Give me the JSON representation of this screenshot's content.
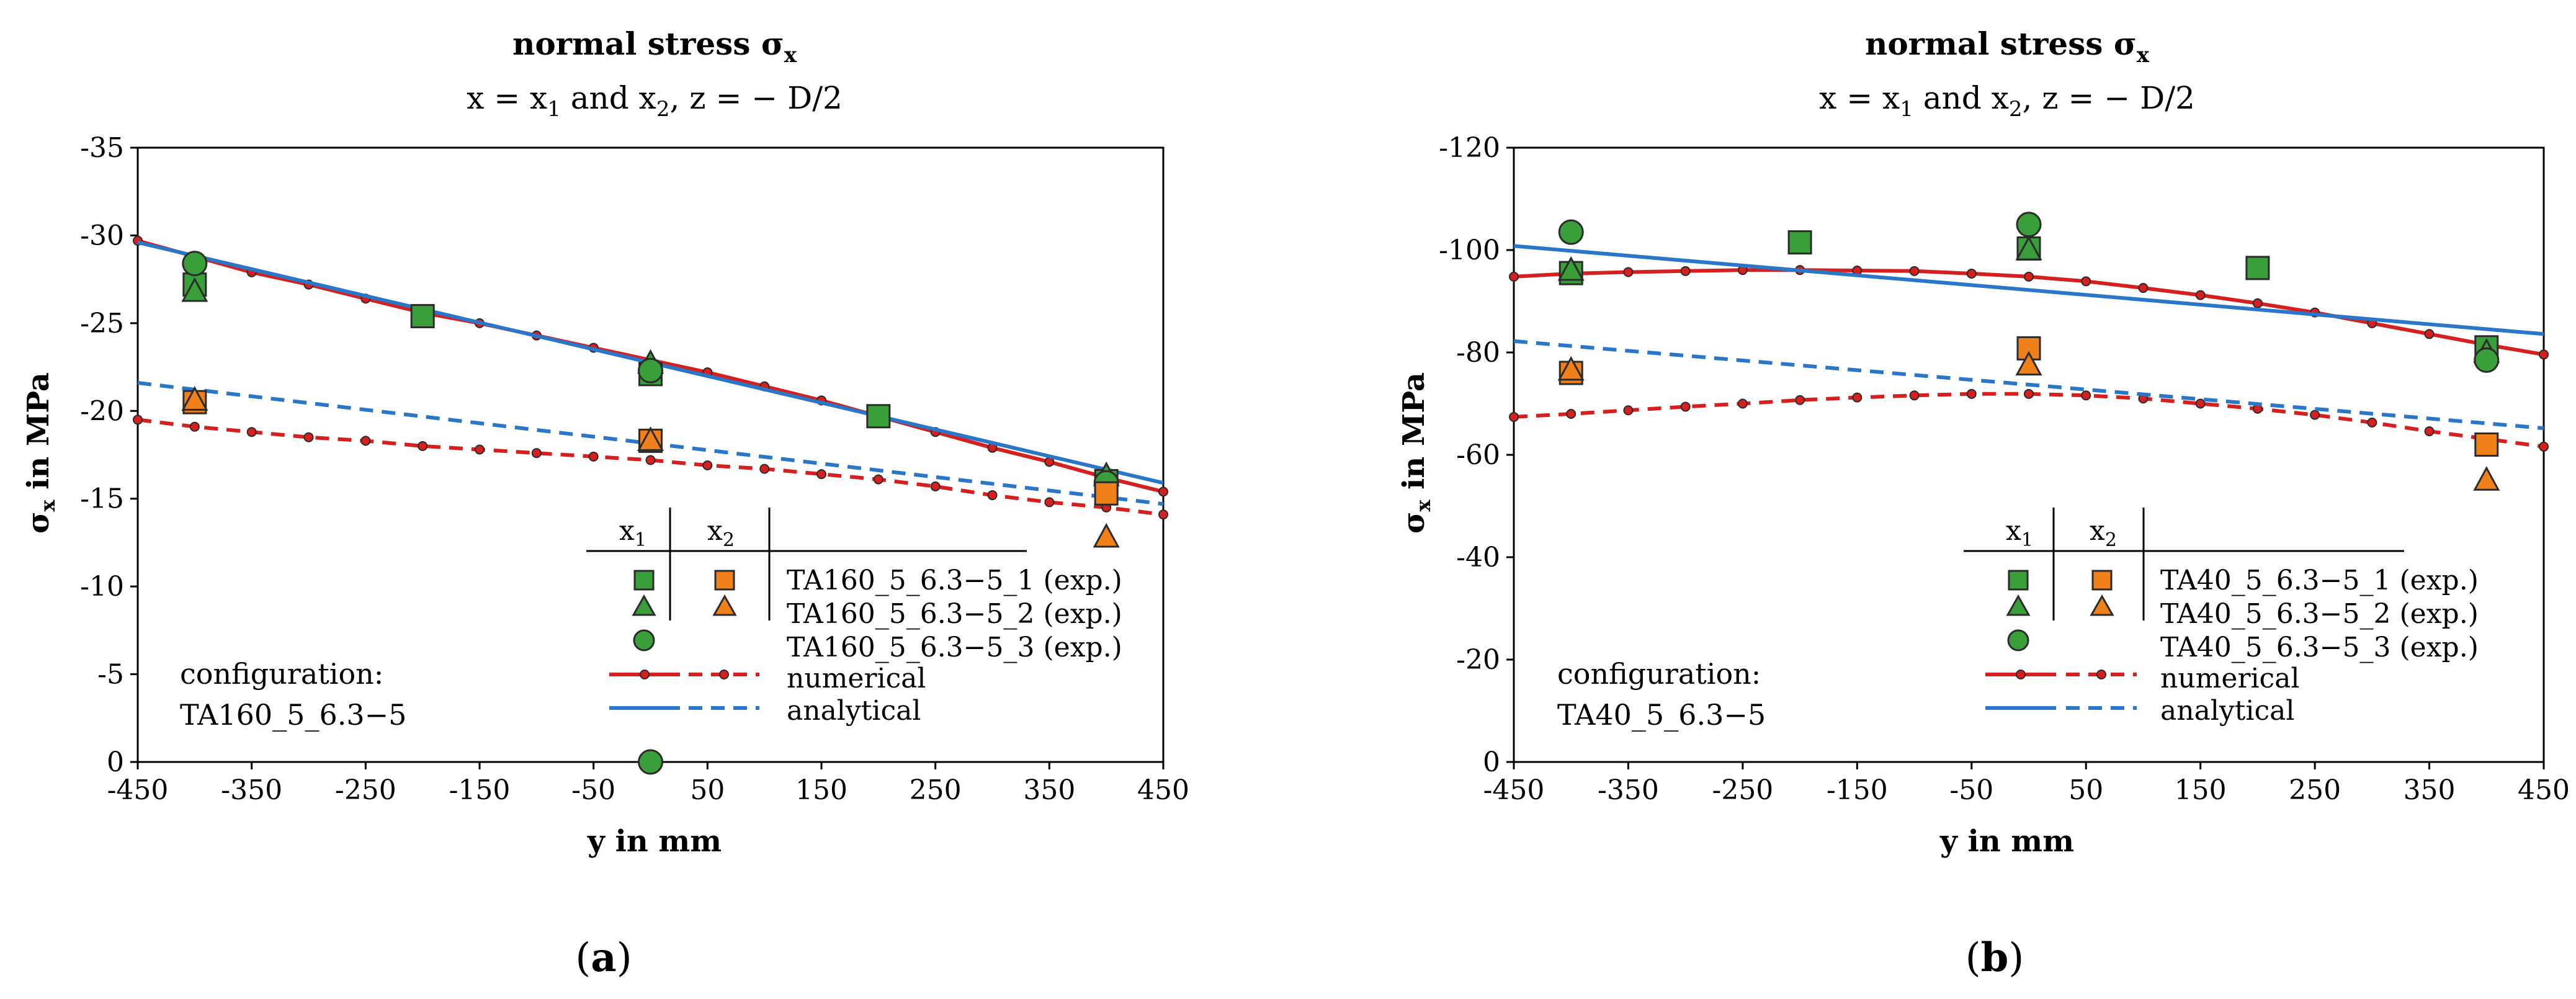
{
  "panels": [
    {
      "title": "normal stress σ",
      "title_sub": "x",
      "subtitle": {
        "p1": "x = x",
        "s1": "1",
        "p2": " and x",
        "s2": "2",
        "p3": ", z = − D/2"
      },
      "xlabel": "y in mm",
      "ylabel": {
        "main": "σ",
        "sub": "x",
        "rest": " in MPa"
      },
      "caption": {
        "open": "(",
        "letter": "a",
        "close": ")"
      },
      "config": {
        "line1": "configuration:",
        "line2": "TA160_5_6.3−5"
      },
      "legend": {
        "header": {
          "x1_main": "x",
          "x1_sub": "1",
          "x2_main": "x",
          "x2_sub": "2"
        },
        "rows": [
          "TA160_5_6.3−5_1 (exp.)",
          "TA160_5_6.3−5_2 (exp.)",
          "TA160_5_6.3−5_3 (exp.)",
          "numerical",
          "analytical"
        ]
      }
    },
    {
      "title": "normal stress σ",
      "title_sub": "x",
      "subtitle": {
        "p1": "x = x",
        "s1": "1",
        "p2": " and x",
        "s2": "2",
        "p3": ", z = − D/2"
      },
      "xlabel": "y in mm",
      "ylabel": {
        "main": "σ",
        "sub": "x",
        "rest": " in MPa"
      },
      "caption": {
        "open": "(",
        "letter": "b",
        "close": ")"
      },
      "config": {
        "line1": "configuration:",
        "line2": "TA40_5_6.3−5"
      },
      "legend": {
        "header": {
          "x1_main": "x",
          "x1_sub": "1",
          "x2_main": "x",
          "x2_sub": "2"
        },
        "rows": [
          "TA40_5_6.3−5_1 (exp.)",
          "TA40_5_6.3−5_2 (exp.)",
          "TA40_5_6.3−5_3 (exp.)",
          "numerical",
          "analytical"
        ]
      }
    }
  ],
  "chart_data": [
    {
      "type": "line",
      "title": "normal stress σx",
      "subtitle": "x = x1 and x2, z = − D/2",
      "xlabel": "y in mm",
      "ylabel": "σx in MPa",
      "xlim": [
        -450,
        450
      ],
      "ylim": [
        0,
        -35
      ],
      "y_inverted": true,
      "x_ticks": [
        -450,
        -350,
        -250,
        -150,
        -50,
        50,
        150,
        250,
        350,
        450
      ],
      "y_ticks": [
        0,
        -5,
        -10,
        -15,
        -20,
        -25,
        -30,
        -35
      ],
      "grid": false,
      "legend_position": "bottom-right",
      "colors": {
        "x1": "#3a9e3a",
        "x2": "#f0801a",
        "numerical": "#d62020",
        "analytical": "#2a76c8",
        "stroke": "#2b2b2b"
      },
      "series": [
        {
          "name": "numerical",
          "location": "x1",
          "x": [
            -450,
            -400,
            -350,
            -300,
            -250,
            -200,
            -150,
            -100,
            -50,
            0,
            50,
            100,
            150,
            200,
            250,
            300,
            350,
            400,
            450
          ],
          "y": [
            -29.7,
            -28.8,
            -27.9,
            -27.2,
            -26.4,
            -25.6,
            -25.0,
            -24.3,
            -23.6,
            -22.9,
            -22.2,
            -21.4,
            -20.6,
            -19.7,
            -18.8,
            -17.9,
            -17.1,
            -16.2,
            -15.4
          ]
        },
        {
          "name": "numerical",
          "location": "x2",
          "x": [
            -450,
            -400,
            -350,
            -300,
            -250,
            -200,
            -150,
            -100,
            -50,
            0,
            50,
            100,
            150,
            200,
            250,
            300,
            350,
            400,
            450
          ],
          "y": [
            -19.5,
            -19.1,
            -18.8,
            -18.5,
            -18.3,
            -18.0,
            -17.8,
            -17.6,
            -17.4,
            -17.2,
            -16.9,
            -16.7,
            -16.4,
            -16.1,
            -15.7,
            -15.2,
            -14.8,
            -14.5,
            -14.1
          ]
        },
        {
          "name": "analytical",
          "location": "x1",
          "x": [
            -450,
            450
          ],
          "y": [
            -29.6,
            -15.9
          ]
        },
        {
          "name": "analytical",
          "location": "x2",
          "x": [
            -450,
            450
          ],
          "y": [
            -21.6,
            -14.7
          ]
        },
        {
          "name": "TA160_5_6.3−5_1 (exp.)",
          "location": "x1",
          "x": [
            -400,
            -200,
            0,
            200,
            400
          ],
          "y": [
            -27.2,
            -25.4,
            -22.1,
            -19.7,
            -16.0
          ]
        },
        {
          "name": "TA160_5_6.3−5_2 (exp.)",
          "location": "x1",
          "x": [
            -400,
            0,
            400
          ],
          "y": [
            -26.8,
            -22.7,
            -16.3
          ]
        },
        {
          "name": "TA160_5_6.3−5_3 (exp.)",
          "location": "x1",
          "x": [
            -400,
            0,
            0,
            400
          ],
          "y": [
            -28.4,
            -22.3,
            0.0,
            -15.9
          ]
        },
        {
          "name": "TA160_5_6.3−5_1 (exp.)",
          "location": "x2",
          "x": [
            -400,
            0,
            400
          ],
          "y": [
            -20.5,
            -18.3,
            -15.3
          ]
        },
        {
          "name": "TA160_5_6.3−5_2 (exp.)",
          "location": "x2",
          "x": [
            -400,
            0,
            400
          ],
          "y": [
            -20.6,
            -18.3,
            -12.8
          ]
        }
      ]
    },
    {
      "type": "line",
      "title": "normal stress σx",
      "subtitle": "x = x1 and x2, z = − D/2",
      "xlabel": "y in mm",
      "ylabel": "σx in MPa",
      "xlim": [
        -450,
        450
      ],
      "ylim": [
        0,
        -120
      ],
      "y_inverted": true,
      "x_ticks": [
        -450,
        -350,
        -250,
        -150,
        -50,
        50,
        150,
        250,
        350,
        450
      ],
      "y_ticks": [
        0,
        -20,
        -40,
        -60,
        -80,
        -100,
        -120
      ],
      "grid": false,
      "legend_position": "bottom-right",
      "colors": {
        "x1": "#3a9e3a",
        "x2": "#f0801a",
        "numerical": "#d62020",
        "analytical": "#2a76c8",
        "stroke": "#2b2b2b"
      },
      "series": [
        {
          "name": "numerical",
          "location": "x1",
          "x": [
            -450,
            -400,
            -350,
            -300,
            -250,
            -200,
            -150,
            -100,
            -50,
            0,
            50,
            100,
            150,
            200,
            250,
            300,
            350,
            400,
            450
          ],
          "y": [
            -94.8,
            -95.4,
            -95.7,
            -95.9,
            -96.1,
            -96.1,
            -96.0,
            -95.9,
            -95.4,
            -94.8,
            -93.9,
            -92.6,
            -91.2,
            -89.6,
            -87.8,
            -85.7,
            -83.6,
            -81.5,
            -79.6
          ]
        },
        {
          "name": "numerical",
          "location": "x2",
          "x": [
            -450,
            -400,
            -350,
            -300,
            -250,
            -200,
            -150,
            -100,
            -50,
            0,
            50,
            100,
            150,
            200,
            250,
            300,
            350,
            400,
            450
          ],
          "y": [
            -67.4,
            -68.0,
            -68.7,
            -69.4,
            -70.0,
            -70.7,
            -71.2,
            -71.6,
            -71.9,
            -71.9,
            -71.6,
            -71.0,
            -70.0,
            -69.0,
            -67.8,
            -66.3,
            -64.6,
            -63.1,
            -61.6
          ]
        },
        {
          "name": "analytical",
          "location": "x1",
          "x": [
            -450,
            450
          ],
          "y": [
            -100.8,
            -83.6
          ]
        },
        {
          "name": "analytical",
          "location": "x2",
          "x": [
            -450,
            450
          ],
          "y": [
            -82.2,
            -65.2
          ]
        },
        {
          "name": "TA40_5_6.3−5_1 (exp.)",
          "location": "x1",
          "x": [
            -400,
            -200,
            0,
            200,
            400
          ],
          "y": [
            -95.5,
            -101.5,
            -100.3,
            -96.5,
            -81.0
          ]
        },
        {
          "name": "TA40_5_6.3−5_2 (exp.)",
          "location": "x1",
          "x": [
            -400,
            0,
            400
          ],
          "y": [
            -96.0,
            -100.0,
            -80.0
          ]
        },
        {
          "name": "TA40_5_6.3−5_3 (exp.)",
          "location": "x1",
          "x": [
            -400,
            0,
            400
          ],
          "y": [
            -103.5,
            -105.0,
            -78.5
          ]
        },
        {
          "name": "TA40_5_6.3−5_1 (exp.)",
          "location": "x2",
          "x": [
            -400,
            0,
            400
          ],
          "y": [
            -76.0,
            -80.8,
            -62.0
          ]
        },
        {
          "name": "TA40_5_6.3−5_2 (exp.)",
          "location": "x2",
          "x": [
            -400,
            0,
            400
          ],
          "y": [
            -76.5,
            -77.5,
            -55.0
          ]
        }
      ]
    }
  ]
}
